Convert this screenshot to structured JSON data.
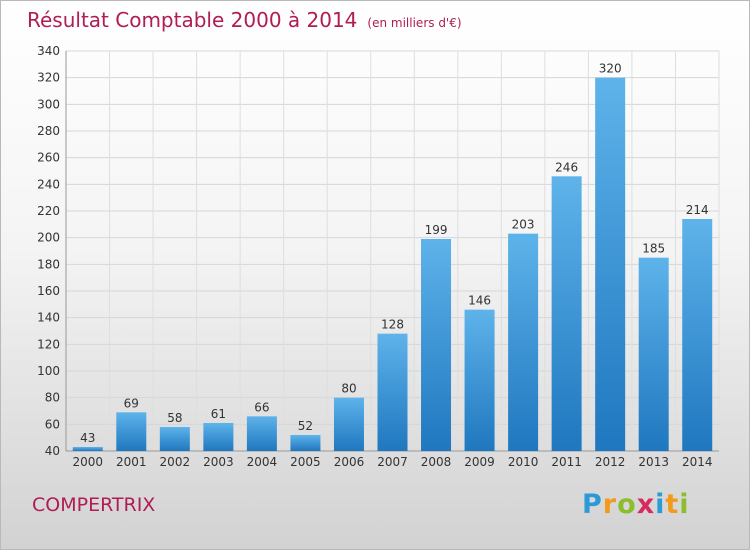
{
  "header": {
    "title": "Résultat Comptable 2000 à 2014",
    "subtitle": "(en milliers d'€)"
  },
  "footer": {
    "town": "COMPERTRIX",
    "logo_letters": [
      {
        "char": "P",
        "color": "#2c9ad6"
      },
      {
        "char": "r",
        "color": "#f29a1c"
      },
      {
        "char": "o",
        "color": "#8cbd2a"
      },
      {
        "char": "x",
        "color": "#d72b5f"
      },
      {
        "char": "i",
        "color": "#2c9ad6"
      },
      {
        "char": "t",
        "color": "#f29a1c"
      },
      {
        "char": "i",
        "color": "#8cbd2a"
      }
    ]
  },
  "chart_data": {
    "type": "bar",
    "title": "Résultat Comptable 2000 à 2014",
    "subtitle": "(en milliers d'€)",
    "categories": [
      "2000",
      "2001",
      "2002",
      "2003",
      "2004",
      "2005",
      "2006",
      "2007",
      "2008",
      "2009",
      "2010",
      "2011",
      "2012",
      "2013",
      "2014"
    ],
    "values": [
      43,
      69,
      58,
      61,
      66,
      52,
      80,
      128,
      199,
      146,
      203,
      246,
      320,
      185,
      214
    ],
    "ylim": [
      40,
      340
    ],
    "yticks": [
      40,
      60,
      80,
      100,
      120,
      140,
      160,
      180,
      200,
      220,
      240,
      260,
      280,
      300,
      320,
      340
    ],
    "grid": true,
    "bar_color_top": "#5eb3ea",
    "bar_color_bottom": "#1f77bf"
  }
}
